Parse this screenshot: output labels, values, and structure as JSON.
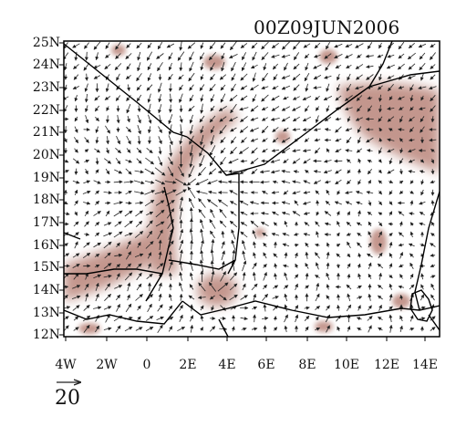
{
  "map": {
    "title": "00Z09JUN2006",
    "lat_labels": [
      "25N",
      "24N",
      "23N",
      "22N",
      "21N",
      "20N",
      "19N",
      "18N",
      "17N",
      "16N",
      "15N",
      "14N",
      "13N",
      "12N"
    ],
    "lon_labels": [
      "4W",
      "2W",
      "0",
      "2E",
      "4E",
      "6E",
      "8E",
      "10E",
      "12E",
      "14E"
    ],
    "extent": {
      "lon_min": -5,
      "lon_max": 15,
      "lat_min": 12,
      "lat_max": 25
    },
    "wind_reference": {
      "value": "20",
      "symbol": "arrow"
    },
    "shading_color": "#b98479",
    "vector_color": "#222222",
    "border_color": "#000000"
  }
}
